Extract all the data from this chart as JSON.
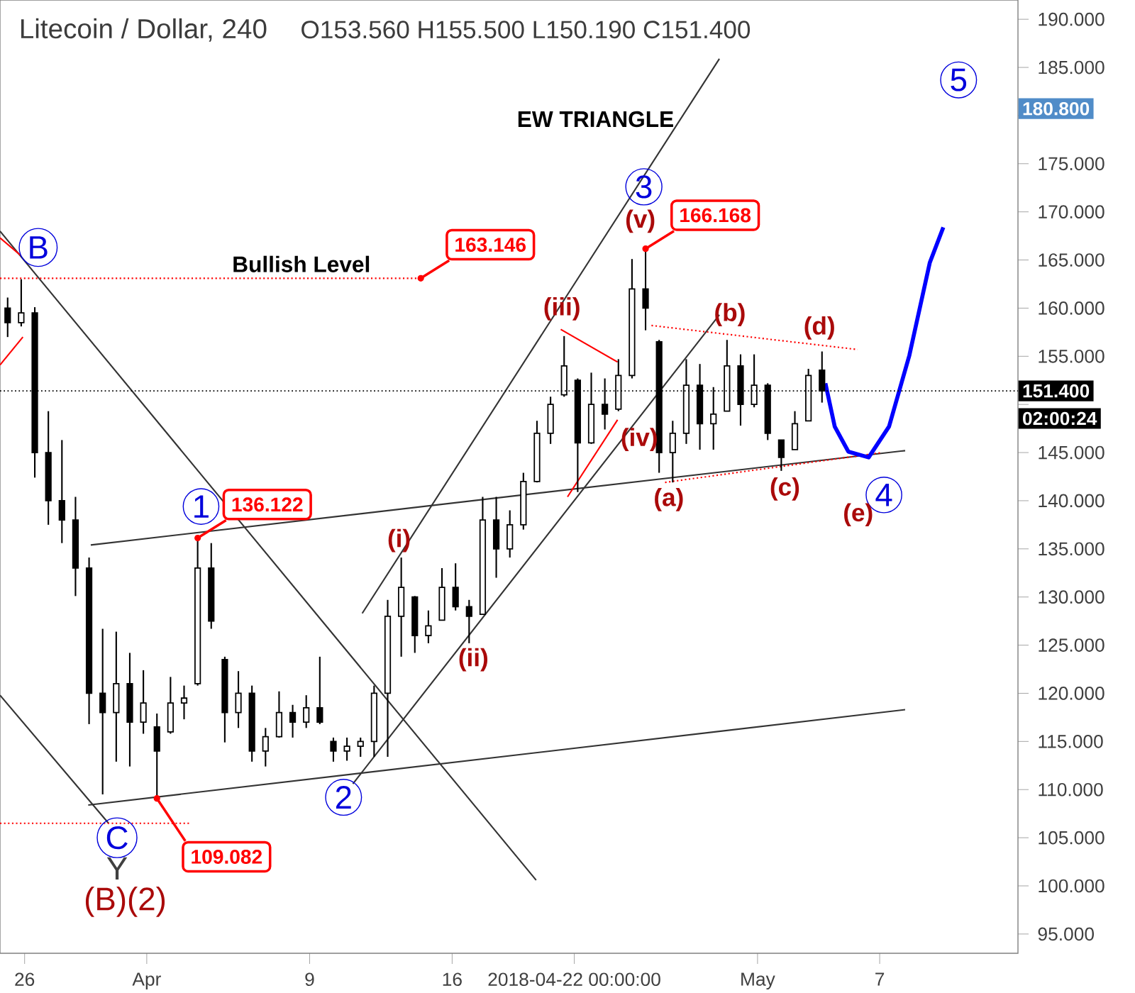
{
  "chart_data": {
    "type": "candlestick",
    "title": "Litecoin / Dollar, 240",
    "subtitle": "O153.560  H155.500  L150.190  C151.400",
    "color": "#000000",
    "x": [
      "2018-03-25T04:00",
      "2018-03-25T20:00",
      "2018-03-26T12:00",
      "2018-03-27T04:00",
      "2018-03-27T20:00",
      "2018-03-28T12:00",
      "2018-03-29T04:00",
      "2018-03-29T20:00",
      "2018-03-30T12:00",
      "2018-03-31T04:00",
      "2018-03-31T20:00",
      "2018-04-01T12:00",
      "2018-04-02T04:00",
      "2018-04-02T20:00",
      "2018-04-03T12:00",
      "2018-04-04T04:00",
      "2018-04-04T20:00",
      "2018-04-05T12:00",
      "2018-04-06T04:00",
      "2018-04-06T20:00",
      "2018-04-07T12:00",
      "2018-04-08T04:00",
      "2018-04-08T20:00",
      "2018-04-09T12:00",
      "2018-04-10T04:00",
      "2018-04-10T20:00",
      "2018-04-11T12:00",
      "2018-04-12T04:00",
      "2018-04-12T20:00",
      "2018-04-13T12:00",
      "2018-04-14T04:00",
      "2018-04-14T20:00",
      "2018-04-15T12:00",
      "2018-04-16T04:00",
      "2018-04-16T20:00",
      "2018-04-17T12:00",
      "2018-04-18T04:00",
      "2018-04-18T20:00",
      "2018-04-19T12:00",
      "2018-04-20T04:00",
      "2018-04-20T20:00",
      "2018-04-21T12:00",
      "2018-04-22T04:00",
      "2018-04-22T20:00",
      "2018-04-23T12:00",
      "2018-04-24T04:00",
      "2018-04-24T20:00",
      "2018-04-25T12:00",
      "2018-04-26T04:00",
      "2018-04-26T20:00",
      "2018-04-27T12:00",
      "2018-04-28T04:00",
      "2018-04-28T20:00",
      "2018-04-29T12:00",
      "2018-04-30T04:00",
      "2018-04-30T20:00",
      "2018-05-01T12:00",
      "2018-05-02T04:00",
      "2018-05-02T20:00",
      "2018-05-03T12:00",
      "2018-05-04T04:00"
    ],
    "ohlc": [
      [
        160,
        161.1,
        157,
        158.5
      ],
      [
        158.5,
        163,
        158.1,
        159.5
      ],
      [
        159.5,
        160.1,
        142.4,
        145
      ],
      [
        145,
        149.3,
        137.5,
        140
      ],
      [
        140,
        146.3,
        135.6,
        138
      ],
      [
        138,
        140.4,
        130.1,
        133
      ],
      [
        133,
        134.1,
        116.8,
        120
      ],
      [
        120,
        126.7,
        109.5,
        118
      ],
      [
        118,
        126.4,
        112.9,
        121
      ],
      [
        121,
        124.2,
        112.4,
        117
      ],
      [
        117,
        122.4,
        115.8,
        119
      ],
      [
        116.5,
        117.9,
        109.082,
        114
      ],
      [
        116,
        121.7,
        115.8,
        119
      ],
      [
        119,
        120.8,
        117.3,
        119.5
      ],
      [
        121,
        136.122,
        120.8,
        133
      ],
      [
        133,
        135.6,
        126.7,
        127.5
      ],
      [
        123.5,
        123.8,
        114.9,
        118
      ],
      [
        118,
        122.3,
        116.4,
        120
      ],
      [
        120,
        120.8,
        112.9,
        114
      ],
      [
        114,
        116.4,
        112.4,
        115.5
      ],
      [
        115.5,
        120.2,
        115.4,
        118
      ],
      [
        118,
        118.8,
        115.4,
        117
      ],
      [
        117,
        119.8,
        116.4,
        118.5
      ],
      [
        118.5,
        123.8,
        116.8,
        117
      ],
      [
        115,
        115.4,
        112.9,
        114
      ],
      [
        114,
        115.4,
        113,
        114.5
      ],
      [
        114.5,
        115.4,
        113.4,
        115
      ],
      [
        115,
        120.8,
        113.4,
        120
      ],
      [
        120,
        129.7,
        113.4,
        128
      ],
      [
        128,
        134.1,
        123.8,
        131
      ],
      [
        130,
        130.1,
        124.2,
        126
      ],
      [
        126,
        128.6,
        125.2,
        127
      ],
      [
        127.6,
        133,
        127.6,
        131
      ],
      [
        131,
        133.5,
        128.6,
        129
      ],
      [
        129,
        129.7,
        125.2,
        128
      ],
      [
        128.2,
        140.4,
        128.2,
        138
      ],
      [
        138,
        140.4,
        132,
        135
      ],
      [
        135,
        139,
        134.1,
        137.5
      ],
      [
        137.5,
        142.9,
        137,
        142
      ],
      [
        142,
        148.3,
        141.9,
        147
      ],
      [
        147,
        150.8,
        145.9,
        150
      ],
      [
        151,
        157.1,
        150.8,
        154
      ],
      [
        152.5,
        152.7,
        140.9,
        146
      ],
      [
        146,
        153.3,
        145.9,
        150
      ],
      [
        150,
        152.7,
        147.4,
        149
      ],
      [
        149.5,
        154.7,
        149.3,
        153
      ],
      [
        153,
        165.1,
        152.7,
        162
      ],
      [
        162,
        166.168,
        157.7,
        160
      ],
      [
        156.5,
        156.7,
        142.9,
        145
      ],
      [
        145,
        148.3,
        141.9,
        147
      ],
      [
        147,
        154.7,
        145.9,
        152
      ],
      [
        152,
        154.2,
        145.3,
        148
      ],
      [
        148,
        151.8,
        145.3,
        149
      ],
      [
        149.3,
        156.7,
        149.3,
        154
      ],
      [
        154,
        155.2,
        147.8,
        150
      ],
      [
        150,
        155.2,
        149.7,
        152
      ],
      [
        152,
        152.2,
        146.3,
        147
      ],
      [
        146.3,
        146.3,
        143.1,
        144.5
      ],
      [
        145.3,
        149.3,
        145.3,
        148
      ],
      [
        148.3,
        153.7,
        148.3,
        153
      ],
      [
        153.56,
        155.5,
        150.19,
        151.4
      ]
    ],
    "series": [
      {
        "type": "line",
        "color": "#333333",
        "x": [
          "2018-03-24T19:00",
          "2018-04-20T03:00"
        ],
        "values": [
          168,
          100.6
        ]
      },
      {
        "type": "line",
        "color": "#333333",
        "x": [
          "2018-03-24T19:00",
          "2018-03-30T03:00"
        ],
        "values": [
          119.8,
          106.5
        ]
      },
      {
        "type": "line",
        "color": "#333333",
        "x": [
          "2018-03-29T03:00",
          "2018-05-08T06:00"
        ],
        "values": [
          108.4,
          118.3
        ]
      },
      {
        "type": "line",
        "color": "#333333",
        "x": [
          "2018-03-29T06:00",
          "2018-05-08T06:00"
        ],
        "values": [
          135.4,
          145.2
        ]
      },
      {
        "type": "line",
        "color": "#333333",
        "x": [
          "2018-04-11T14:00",
          "2018-04-29T03:00"
        ],
        "values": [
          128.3,
          185.9
        ]
      },
      {
        "type": "line",
        "color": "#333333",
        "x": [
          "2018-04-11T03:00",
          "2018-04-29T03:00"
        ],
        "values": [
          110.6,
          159.3
        ]
      },
      {
        "type": "line",
        "color": "#ff0000",
        "line_style": "dotted",
        "x": [
          "2018-03-24T19:00",
          "2018-04-14T11:00"
        ],
        "values": [
          163.1,
          163.1
        ]
      },
      {
        "type": "line",
        "color": "#ff0000",
        "line_style": "dotted",
        "x": [
          "2018-03-24T19:00",
          "2018-04-03T03:00"
        ],
        "values": [
          106.5,
          106.5
        ]
      },
      {
        "type": "line",
        "color": "#ff0000",
        "line_style": "dotted",
        "x": [
          "2018-04-25T19:00",
          "2018-05-05T22:00"
        ],
        "values": [
          158.2,
          155.7
        ]
      },
      {
        "type": "line",
        "color": "#ff0000",
        "line_style": "dotted",
        "x": [
          "2018-04-26T11:00",
          "2018-05-07T03:00"
        ],
        "values": [
          141.9,
          145
        ]
      },
      {
        "type": "line",
        "color": "#ff0000",
        "x": [
          "2018-03-24T19:00",
          "2018-03-25T19:00"
        ],
        "values": [
          167.3,
          165.5
        ]
      },
      {
        "type": "line",
        "color": "#ff0000",
        "x": [
          "2018-03-24T19:00",
          "2018-03-25T22:00"
        ],
        "values": [
          154.1,
          157
        ]
      },
      {
        "type": "line",
        "color": "#ff0000",
        "x": [
          "2018-04-21T08:00",
          "2018-04-24T03:00"
        ],
        "values": [
          157.8,
          154.4
        ]
      },
      {
        "type": "line",
        "color": "#ff0000",
        "x": [
          "2018-04-21T16:00",
          "2018-04-24T03:00"
        ],
        "values": [
          140.4,
          148.4
        ]
      },
      {
        "type": "line",
        "color": "#0000ff",
        "x": [
          "2018-05-04T08:00",
          "2018-05-04T19:00",
          "2018-05-05T11:00",
          "2018-05-06T11:00",
          "2018-05-07T11:00",
          "2018-05-08T11:00",
          "2018-05-09T11:00",
          "2018-05-10T03:00"
        ],
        "values": [
          152.2,
          147.7,
          145.1,
          144.5,
          147.7,
          155.1,
          164.7,
          168.4
        ]
      }
    ],
    "ref_lines": [
      {
        "axis": "y",
        "value": 151.4,
        "label": "151.400",
        "color": "#000000",
        "line_style": "dotted"
      }
    ],
    "xlim": [
      "2018-03-24T19:00",
      "2018-05-13T19:00"
    ],
    "ylim": [
      93,
      192
    ],
    "xticks": [
      {
        "value": "2018-03-26",
        "label": "26"
      },
      {
        "value": "2018-04-01",
        "label": "Apr"
      },
      {
        "value": "2018-04-09",
        "label": "9"
      },
      {
        "value": "2018-04-16",
        "label": "16"
      },
      {
        "value": "2018-04-22T00:00",
        "label": "2018-04-22 00:00:00"
      },
      {
        "value": "2018-05-01",
        "label": "May"
      },
      {
        "value": "2018-05-07",
        "label": "7"
      }
    ],
    "yticks": [
      {
        "value": 95,
        "label": "95.000"
      },
      {
        "value": 100,
        "label": "100.000"
      },
      {
        "value": 105,
        "label": "105.000"
      },
      {
        "value": 110,
        "label": "110.000"
      },
      {
        "value": 115,
        "label": "115.000"
      },
      {
        "value": 120,
        "label": "120.000"
      },
      {
        "value": 125,
        "label": "125.000"
      },
      {
        "value": 130,
        "label": "130.000"
      },
      {
        "value": 135,
        "label": "135.000"
      },
      {
        "value": 140,
        "label": "140.000"
      },
      {
        "value": 145,
        "label": "145.000"
      },
      {
        "value": 150,
        "label": null
      },
      {
        "value": 155,
        "label": "155.000"
      },
      {
        "value": 160,
        "label": "160.000"
      },
      {
        "value": 165,
        "label": "165.000"
      },
      {
        "value": 170,
        "label": "170.000"
      },
      {
        "value": 175,
        "label": "175.000"
      },
      {
        "value": 180,
        "label": null
      },
      {
        "value": 185,
        "label": "185.000"
      },
      {
        "value": 190,
        "label": "190.000"
      }
    ],
    "annotations": [
      {
        "text": "B",
        "x": "2018-03-26T16:00",
        "y": 166.3
      },
      {
        "text": "1",
        "x": "2018-04-03T16:00",
        "y": 139.4
      },
      {
        "text": "2",
        "x": "2018-04-10T16:00",
        "y": 109.2
      },
      {
        "text": "3",
        "x": "2018-04-25T10:00",
        "y": 172.6
      },
      {
        "text": "4",
        "x": "2018-05-07T05:00",
        "y": 140.6
      },
      {
        "text": "5",
        "x": "2018-05-10T21:00",
        "y": 183.7
      },
      {
        "text": "C",
        "x": "2018-03-30T13:00",
        "y": 105.0
      },
      "Y",
      "(B)(2)",
      "(i)",
      "(ii)",
      "(iii)",
      "(iv)",
      "(v)",
      "(a)",
      "(b)",
      "(c)",
      "(d)",
      "(e)",
      "EW TRIANGLE",
      "Bullish Level",
      {
        "text": "163.146",
        "x": "2018-04-14T11:00",
        "y": 163.1
      },
      {
        "text": "136.122",
        "x": "2018-04-03T12:00",
        "y": 136.122
      },
      {
        "text": "109.082",
        "x": "2018-04-01T12:00",
        "y": 109.082
      },
      {
        "text": "166.168",
        "x": "2018-04-25T12:00",
        "y": 166.168
      },
      "180.800",
      "02:00:24"
    ]
  }
}
